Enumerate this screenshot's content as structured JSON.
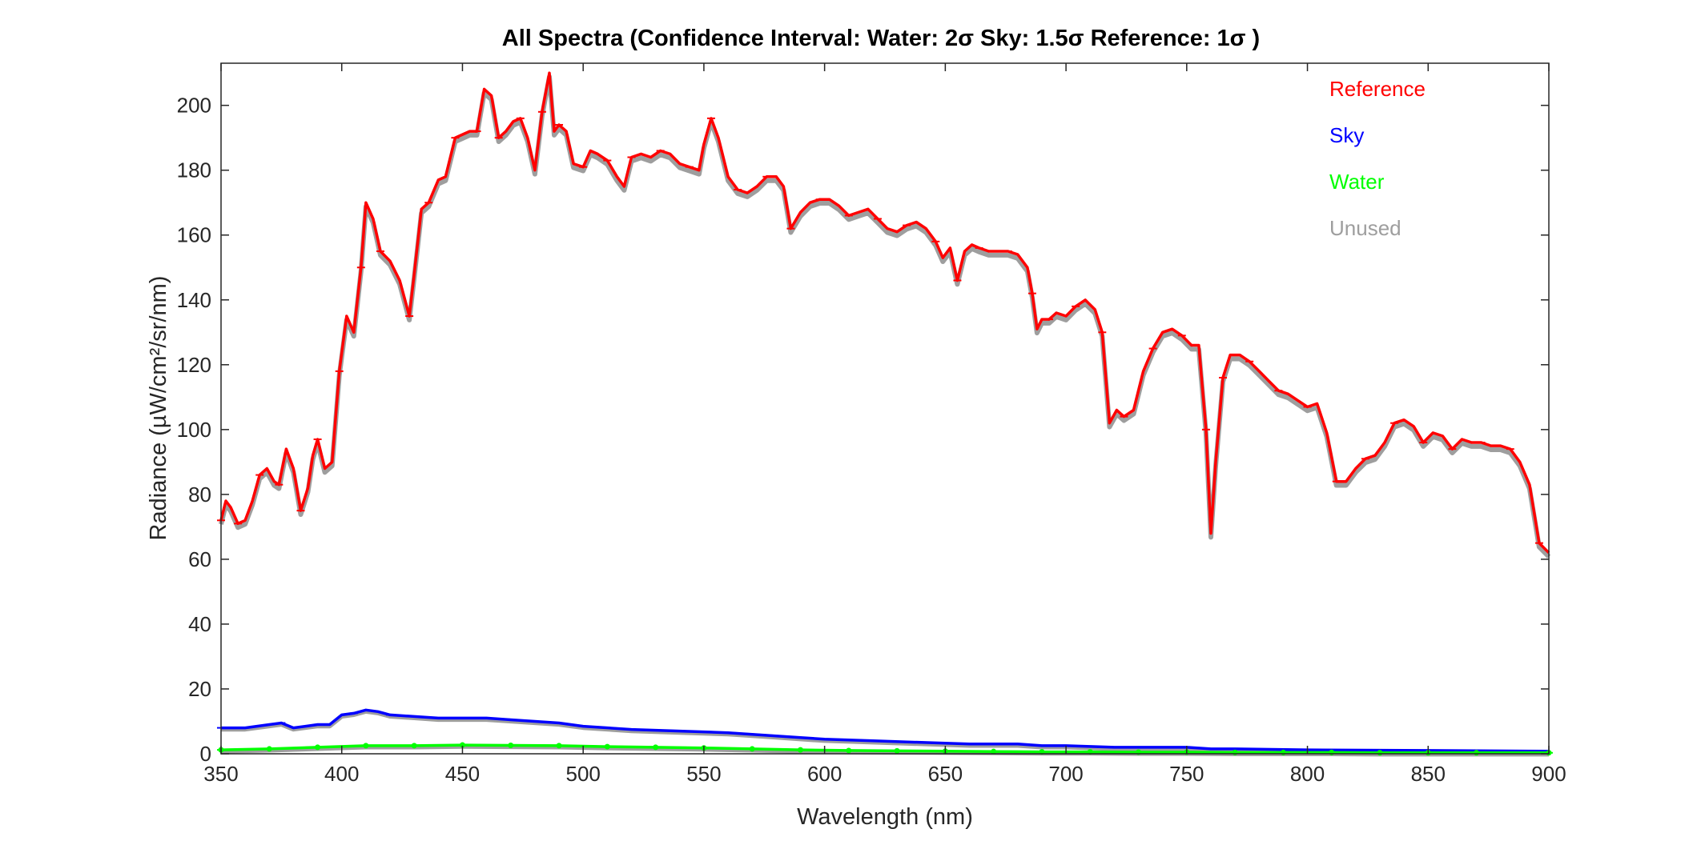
{
  "chart_data": {
    "type": "line",
    "title": "All Spectra (Confidence Interval: Water: 2σ  Sky: 1.5σ  Reference: 1σ )",
    "xlabel": "Wavelength (nm)",
    "ylabel": "Radiance (µW/cm²/sr/nm)",
    "xlim": [
      350,
      900
    ],
    "ylim": [
      0,
      213
    ],
    "xticks": [
      350,
      400,
      450,
      500,
      550,
      600,
      650,
      700,
      750,
      800,
      850,
      900
    ],
    "yticks": [
      0,
      20,
      40,
      60,
      80,
      100,
      120,
      140,
      160,
      180,
      200
    ],
    "legend_position": "top-right",
    "grid": false,
    "series": [
      {
        "name": "Reference",
        "color": "#ff0000",
        "x": [
          350,
          352,
          354,
          357,
          360,
          363,
          366,
          369,
          372,
          374,
          377,
          380,
          383,
          386,
          388,
          390,
          393,
          396,
          399,
          402,
          405,
          408,
          410,
          413,
          416,
          420,
          424,
          428,
          430,
          433,
          436,
          440,
          443,
          447,
          450,
          453,
          456,
          459,
          462,
          465,
          468,
          471,
          474,
          477,
          480,
          483,
          486,
          488,
          490,
          493,
          496,
          500,
          503,
          506,
          510,
          514,
          517,
          520,
          524,
          528,
          532,
          536,
          540,
          544,
          548,
          550,
          553,
          556,
          560,
          564,
          568,
          572,
          576,
          580,
          583,
          586,
          590,
          594,
          598,
          602,
          606,
          610,
          614,
          618,
          622,
          626,
          630,
          634,
          638,
          642,
          646,
          649,
          652,
          655,
          658,
          661,
          664,
          668,
          672,
          676,
          680,
          684,
          686,
          688,
          690,
          693,
          696,
          700,
          704,
          708,
          712,
          715,
          718,
          721,
          724,
          728,
          732,
          736,
          740,
          744,
          748,
          752,
          755,
          758,
          760,
          762,
          765,
          768,
          772,
          776,
          780,
          784,
          788,
          792,
          796,
          800,
          804,
          808,
          812,
          816,
          820,
          824,
          828,
          832,
          836,
          840,
          844,
          848,
          852,
          856,
          860,
          864,
          868,
          872,
          876,
          880,
          884,
          888,
          892,
          896,
          900
        ],
        "values": [
          72,
          78,
          76,
          71,
          72,
          78,
          86,
          88,
          84,
          83,
          94,
          88,
          75,
          82,
          92,
          97,
          88,
          90,
          118,
          135,
          130,
          150,
          170,
          165,
          155,
          152,
          146,
          135,
          148,
          168,
          170,
          177,
          178,
          190,
          191,
          192,
          192,
          205,
          203,
          190,
          192,
          195,
          196,
          190,
          180,
          198,
          210,
          192,
          194,
          192,
          182,
          181,
          186,
          185,
          183,
          178,
          175,
          184,
          185,
          184,
          186,
          185,
          182,
          181,
          180,
          188,
          196,
          190,
          178,
          174,
          173,
          175,
          178,
          178,
          175,
          162,
          167,
          170,
          171,
          171,
          169,
          166,
          167,
          168,
          165,
          162,
          161,
          163,
          164,
          162,
          158,
          153,
          156,
          146,
          155,
          157,
          156,
          155,
          155,
          155,
          154,
          150,
          142,
          131,
          134,
          134,
          136,
          135,
          138,
          140,
          137,
          130,
          102,
          106,
          104,
          106,
          118,
          125,
          130,
          131,
          129,
          126,
          126,
          100,
          68,
          90,
          116,
          123,
          123,
          121,
          118,
          115,
          112,
          111,
          109,
          107,
          108,
          99,
          84,
          84,
          88,
          91,
          92,
          96,
          102,
          103,
          101,
          96,
          99,
          98,
          94,
          97,
          96,
          96,
          95,
          95,
          94,
          90,
          83,
          65,
          62
        ]
      },
      {
        "name": "Sky",
        "color": "#0000ff",
        "x": [
          350,
          360,
          370,
          375,
          380,
          385,
          390,
          395,
          400,
          405,
          410,
          415,
          420,
          430,
          440,
          450,
          460,
          470,
          480,
          490,
          500,
          520,
          540,
          560,
          580,
          590,
          600,
          620,
          640,
          660,
          680,
          690,
          700,
          720,
          740,
          750,
          760,
          770,
          800,
          850,
          900
        ],
        "values": [
          8,
          8,
          9,
          9.5,
          8,
          8.5,
          9,
          9,
          12,
          12.5,
          13.5,
          13,
          12,
          11.5,
          11,
          11,
          11,
          10.5,
          10,
          9.5,
          8.5,
          7.5,
          7,
          6.5,
          5.5,
          5,
          4.5,
          4,
          3.5,
          3,
          3,
          2.5,
          2.5,
          2,
          2,
          2,
          1.5,
          1.5,
          1.2,
          1,
          0.8
        ]
      },
      {
        "name": "Water",
        "color": "#00ff00",
        "x": [
          350,
          370,
          390,
          410,
          430,
          450,
          470,
          490,
          510,
          530,
          550,
          570,
          590,
          610,
          630,
          650,
          670,
          690,
          710,
          730,
          750,
          770,
          790,
          810,
          830,
          850,
          870,
          900
        ],
        "values": [
          1.2,
          1.5,
          2,
          2.5,
          2.5,
          2.7,
          2.6,
          2.5,
          2.2,
          2,
          1.8,
          1.5,
          1.2,
          1,
          0.9,
          0.8,
          0.7,
          0.6,
          0.6,
          0.5,
          0.5,
          0.4,
          0.4,
          0.4,
          0.3,
          0.3,
          0.3,
          0.3
        ]
      },
      {
        "name": "Unused",
        "color": "#9e9e9e"
      }
    ]
  }
}
